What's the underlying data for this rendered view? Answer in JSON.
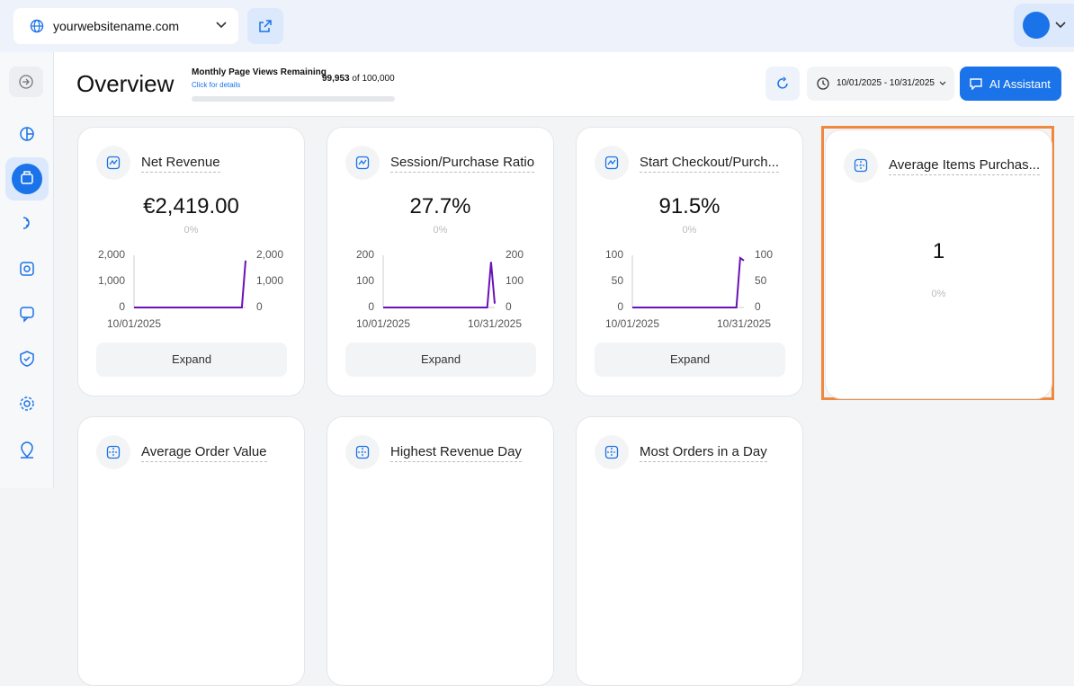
{
  "topbar": {
    "site": "yourwebsitename.com"
  },
  "header": {
    "title": "Overview",
    "quota_label": "Monthly Page Views Remaining",
    "quota_link": "Click for details",
    "quota_used": "99,953",
    "quota_total": "of 100,000",
    "date_range": "10/01/2025 - 10/31/2025",
    "assistant_button": "AI Assistant"
  },
  "cards": [
    {
      "title": "Net Revenue",
      "value": "€2,419.00",
      "change": "0%",
      "button": "Expand",
      "chart": {
        "type": "line",
        "categories": [
          "10/01/2025",
          null,
          null,
          null,
          null,
          null,
          null,
          null,
          null,
          null,
          null,
          null,
          null,
          null,
          null,
          null,
          null,
          null,
          null,
          null,
          null,
          null,
          null,
          null,
          null,
          null,
          null,
          null,
          null,
          null,
          null
        ],
        "series": [
          {
            "color": "#6a11b8",
            "values": [
              0,
              0,
              0,
              0,
              0,
              0,
              0,
              0,
              0,
              0,
              0,
              0,
              0,
              0,
              0,
              0,
              0,
              0,
              0,
              0,
              0,
              0,
              0,
              0,
              0,
              0,
              0,
              0,
              0,
              0,
              1800
            ]
          }
        ],
        "ylim": [
          0,
          2000
        ],
        "yticks": [
          0,
          {
            "value": 1000,
            "label": "1,000"
          },
          {
            "value": 2000,
            "label": "2,000"
          }
        ],
        "y2lim": [
          0,
          2000
        ],
        "y2ticks": [
          0,
          {
            "value": 1000,
            "label": "1,000"
          },
          {
            "value": 2000,
            "label": "2,000"
          }
        ]
      }
    },
    {
      "title": "Session/Purchase Ratio",
      "value": "27.7%",
      "change": "0%",
      "button": "Expand",
      "chart": {
        "type": "line",
        "categories": [
          "10/01/2025",
          null,
          null,
          null,
          null,
          null,
          null,
          null,
          null,
          null,
          null,
          null,
          null,
          null,
          null,
          null,
          null,
          null,
          null,
          null,
          null,
          null,
          null,
          null,
          null,
          null,
          null,
          null,
          null,
          null,
          "10/31/2025"
        ],
        "series": [
          {
            "color": "#6a11b8",
            "values": [
              0,
              0,
              0,
              0,
              0,
              0,
              0,
              0,
              0,
              0,
              0,
              0,
              0,
              0,
              0,
              0,
              0,
              0,
              0,
              0,
              0,
              0,
              0,
              0,
              0,
              0,
              0,
              0,
              0,
              175,
              15
            ]
          }
        ],
        "ylim": [
          0,
          200
        ],
        "yticks": [
          0,
          100,
          200
        ],
        "y2lim": [
          0,
          200
        ],
        "y2ticks": [
          0,
          100,
          200
        ]
      }
    },
    {
      "title": "Start Checkout/Purch...",
      "value": "91.5%",
      "change": "0%",
      "button": "Expand",
      "chart": {
        "type": "line",
        "categories": [
          "10/01/2025",
          null,
          null,
          null,
          null,
          null,
          null,
          null,
          null,
          null,
          null,
          null,
          null,
          null,
          null,
          null,
          null,
          null,
          null,
          null,
          null,
          null,
          null,
          null,
          null,
          null,
          null,
          null,
          null,
          null,
          "10/31/2025"
        ],
        "series": [
          {
            "color": "#6a11b8",
            "values": [
              0,
              0,
              0,
              0,
              0,
              0,
              0,
              0,
              0,
              0,
              0,
              0,
              0,
              0,
              0,
              0,
              0,
              0,
              0,
              0,
              0,
              0,
              0,
              0,
              0,
              0,
              0,
              0,
              0,
              95,
              90
            ]
          }
        ],
        "ylim": [
          0,
          100
        ],
        "yticks": [
          0,
          50,
          100
        ],
        "y2lim": [
          0,
          100
        ],
        "y2ticks": [
          0,
          50,
          100
        ]
      }
    },
    {
      "title": "Average Items Purchas...",
      "value": "1",
      "change": "0%"
    },
    {
      "title": "Average Order Value"
    },
    {
      "title": "Highest Revenue Day"
    },
    {
      "title": "Most Orders in a Day"
    }
  ]
}
